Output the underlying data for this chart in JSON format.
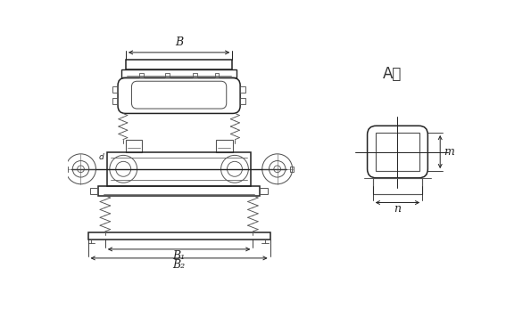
{
  "bg_color": "white",
  "lc": "#555555",
  "lc2": "#222222",
  "title_label": "A向",
  "dim_B": "B",
  "dim_B1": "B₁",
  "dim_B2": "B₂",
  "dim_m": "m",
  "dim_n": "n",
  "figsize": [
    5.95,
    3.56
  ],
  "dpi": 100
}
